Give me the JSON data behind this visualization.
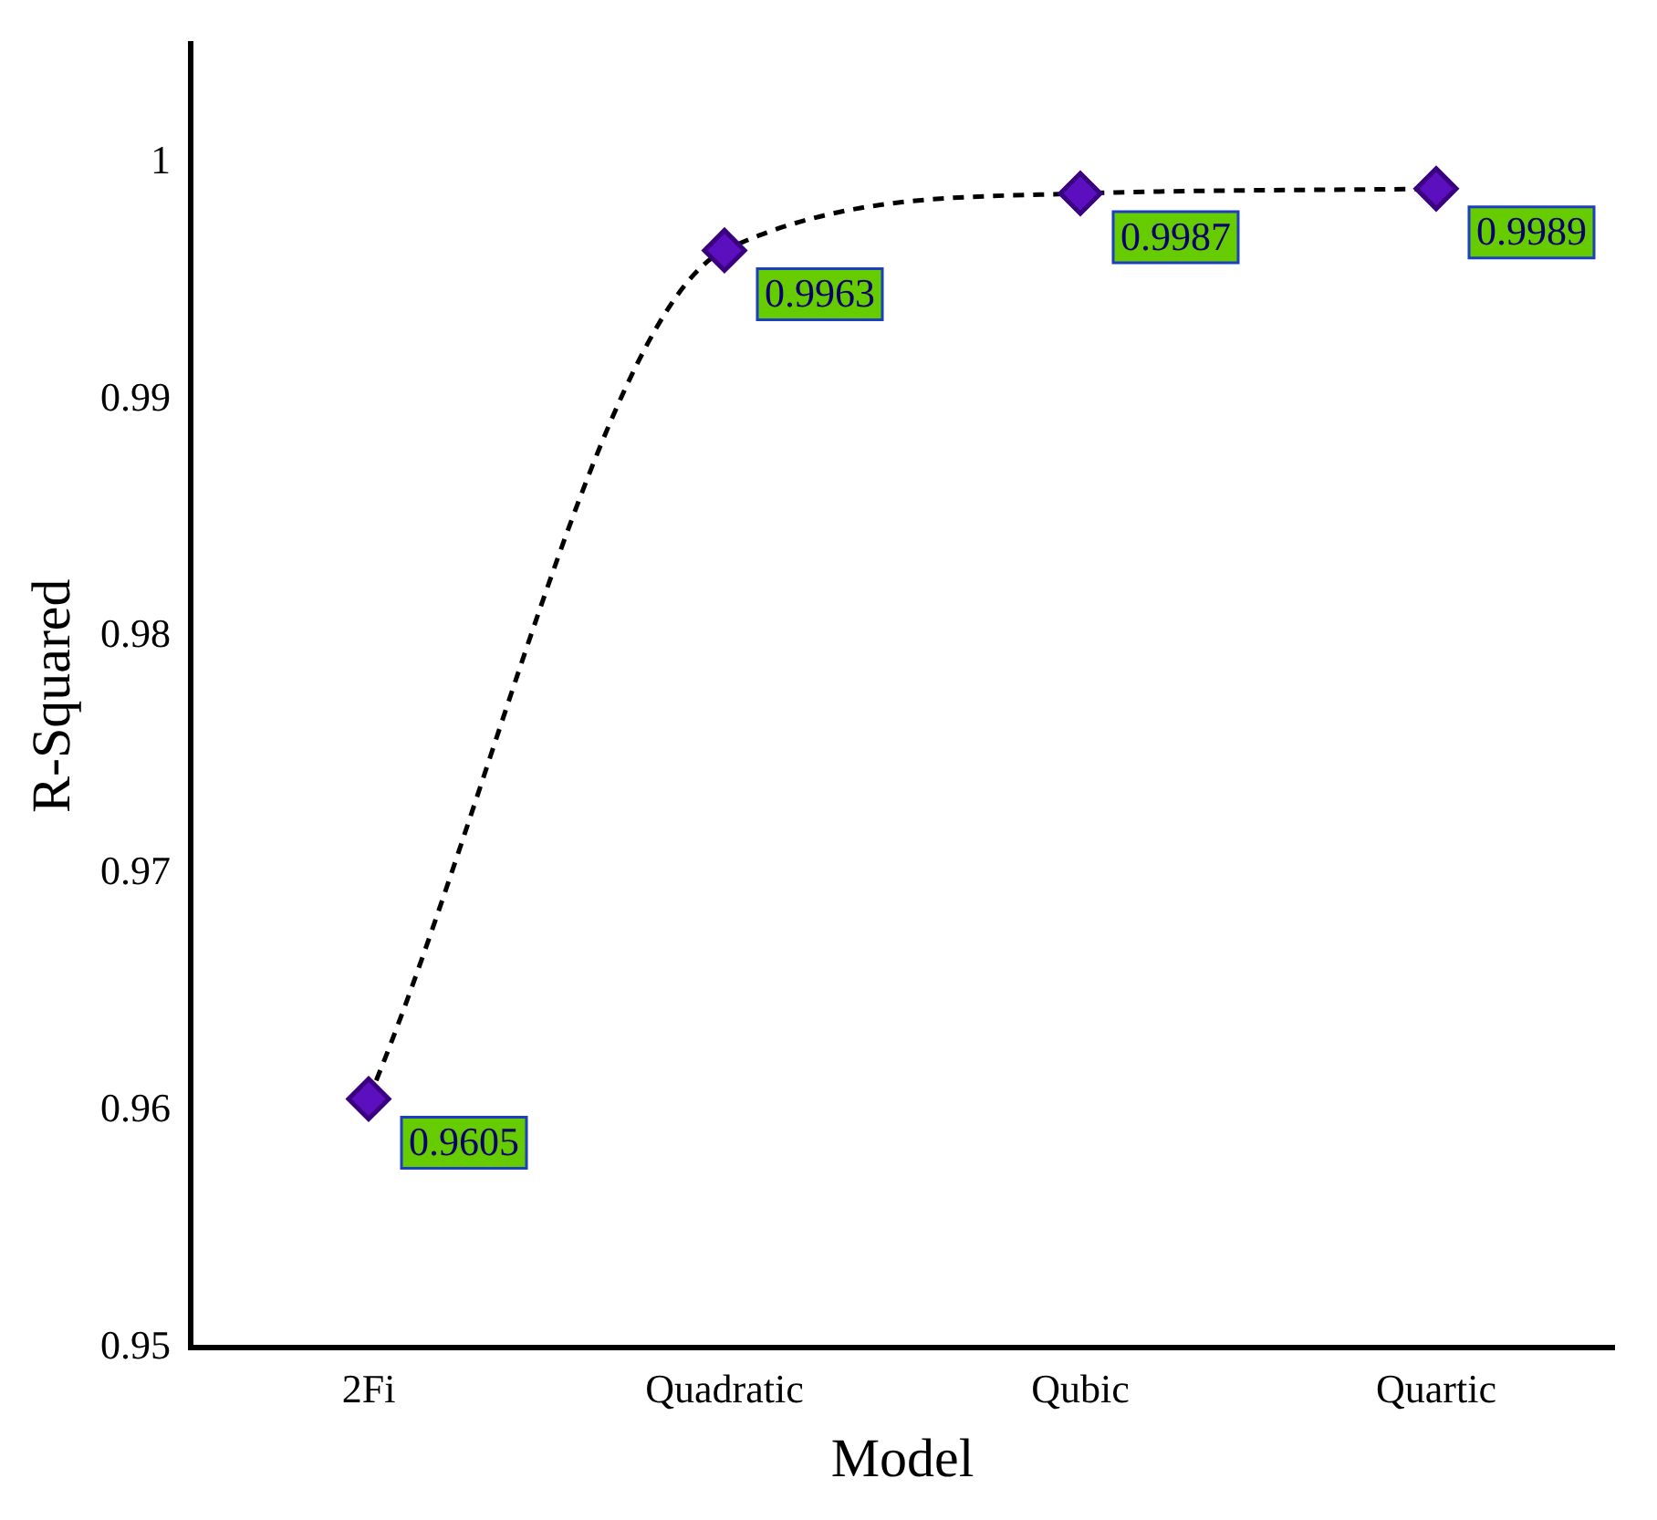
{
  "chart_data": {
    "type": "line",
    "xlabel": "Model",
    "ylabel": "R-Squared",
    "categories": [
      "2Fi",
      "Quadratic",
      "Qubic",
      "Quartic"
    ],
    "series": [
      {
        "color": "#5b0fbf",
        "values": [
          0.9605,
          0.9963,
          0.9987,
          0.9989
        ]
      }
    ],
    "ylim": [
      0.95,
      1.005
    ],
    "yticks": [
      0.95,
      0.96,
      0.97,
      0.98,
      0.99,
      1
    ],
    "grid": false,
    "legend": false,
    "marker": "diamond",
    "line_style": "dashed",
    "data_labels": true
  }
}
